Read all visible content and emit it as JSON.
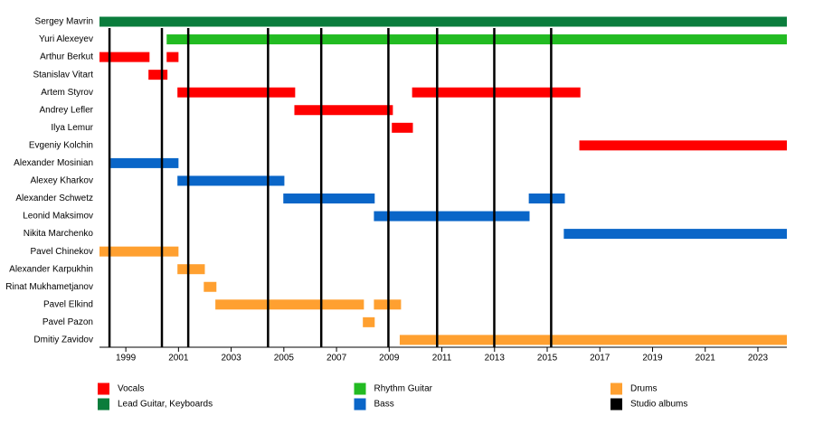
{
  "chart_data": {
    "type": "timeline",
    "categories": [
      "Sergey Mavrin",
      "Yuri Alexeyev",
      "Arthur Berkut",
      "Stanislav Vitart",
      "Artem Styrov",
      "Andrey Lefler",
      "Ilya Lemur",
      "Evgeniy Kolchin",
      "Alexander Mosinian",
      "Alexey Kharkov",
      "Alexander Schwetz",
      "Leonid Maksimov",
      "Nikita Marchenko",
      "Pavel Chinekov",
      "Alexander Karpukhin",
      "Rinat Mukhametjanov",
      "Pavel Elkind",
      "Pavel Pazon",
      "Dmitiy Zavidov"
    ],
    "series": [
      {
        "name": "Vocals",
        "color": "#ff0000",
        "category": [
          "Arthur Berkut",
          "Arthur Berkut",
          "Stanislav Vitart",
          "Artem Styrov",
          "Artem Styrov",
          "Andrey Lefler",
          "Ilya Lemur",
          "Evgeniy Kolchin"
        ],
        "start": [
          1998,
          2000.55,
          1999.86,
          2000.96,
          2009.87,
          2005.4,
          2009.1,
          2016.22
        ],
        "end": [
          1999.9,
          2001.0,
          2000.58,
          2005.43,
          2016.26,
          2009.14,
          2009.9,
          2024.1
        ]
      },
      {
        "name": "Lead Guitar, Keyboards",
        "color": "#0a7d3c",
        "category": [
          "Sergey Mavrin"
        ],
        "start": [
          1998
        ],
        "end": [
          2024.1
        ]
      },
      {
        "name": "Rhythm Guitar",
        "color": "#22bb22",
        "category": [
          "Yuri Alexeyev"
        ],
        "start": [
          2000.55
        ],
        "end": [
          2024.1
        ]
      },
      {
        "name": "Bass",
        "color": "#0a66c8",
        "category": [
          "Alexander Mosinian",
          "Alexey Kharkov",
          "Alexander Schwetz",
          "Alexander Schwetz",
          "Leonid Maksimov",
          "Nikita Marchenko"
        ],
        "start": [
          1998.42,
          2000.96,
          2004.98,
          2014.3,
          2008.42,
          2015.63
        ],
        "end": [
          2001.0,
          2005.02,
          2008.45,
          2015.67,
          2014.33,
          2024.1
        ]
      },
      {
        "name": "Drums",
        "color": "#ffa030",
        "category": [
          "Pavel Chinekov",
          "Alexander Karpukhin",
          "Rinat Mukhametjanov",
          "Pavel Elkind",
          "Pavel Elkind",
          "Pavel Pazon",
          "Dmitiy Zavidov"
        ],
        "start": [
          1998,
          2000.96,
          2001.96,
          2002.4,
          2008.42,
          2008.0,
          2009.4
        ],
        "end": [
          2001.0,
          2002.0,
          2002.44,
          2008.04,
          2009.45,
          2008.45,
          2024.1
        ]
      },
      {
        "name": "Studio albums",
        "color": "#000000",
        "lines": [
          1998.38,
          2000.37,
          2001.37,
          2004.4,
          2006.42,
          2008.97,
          2010.82,
          2012.99,
          2015.15
        ]
      }
    ],
    "xlim": [
      1998,
      2024.1
    ],
    "xticks": [
      1999,
      2001,
      2003,
      2005,
      2007,
      2009,
      2011,
      2013,
      2015,
      2017,
      2019,
      2021,
      2023
    ]
  }
}
